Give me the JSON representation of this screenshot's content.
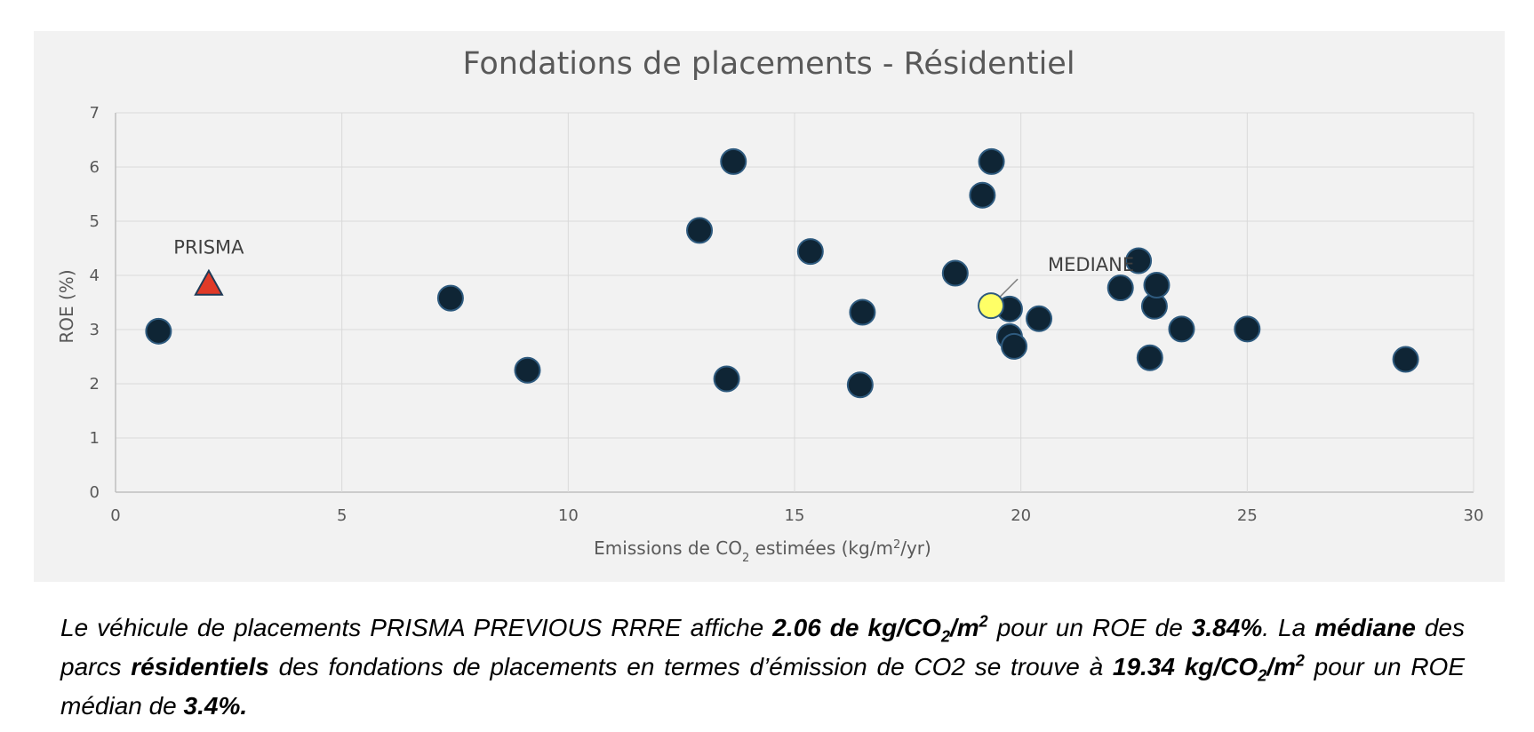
{
  "chart_data": {
    "type": "scatter",
    "title": "Fondations de placements - Résidentiel",
    "xlabel": {
      "main": "Emissions de CO",
      "sub": "2",
      "mid": " estimées (kg/m",
      "sup": "2",
      "end": "/yr)"
    },
    "ylabel": "ROE (%)",
    "xlim": [
      0,
      30
    ],
    "ylim": [
      0,
      7
    ],
    "xticks": [
      0,
      5,
      10,
      15,
      20,
      25,
      30
    ],
    "yticks": [
      0,
      1,
      2,
      3,
      4,
      5,
      6,
      7
    ],
    "grid": true,
    "series": [
      {
        "marker": "circle",
        "color": "#0f2535",
        "points": [
          {
            "x": 0.95,
            "y": 2.97
          },
          {
            "x": 7.4,
            "y": 3.58
          },
          {
            "x": 9.1,
            "y": 2.25
          },
          {
            "x": 12.9,
            "y": 4.83
          },
          {
            "x": 13.5,
            "y": 2.09
          },
          {
            "x": 13.65,
            "y": 6.1
          },
          {
            "x": 15.35,
            "y": 4.44
          },
          {
            "x": 16.45,
            "y": 1.98
          },
          {
            "x": 16.5,
            "y": 3.32
          },
          {
            "x": 18.55,
            "y": 4.04
          },
          {
            "x": 19.15,
            "y": 5.48
          },
          {
            "x": 19.35,
            "y": 6.1
          },
          {
            "x": 19.75,
            "y": 3.38
          },
          {
            "x": 19.75,
            "y": 2.87
          },
          {
            "x": 19.85,
            "y": 2.69
          },
          {
            "x": 20.4,
            "y": 3.2
          },
          {
            "x": 22.2,
            "y": 3.77
          },
          {
            "x": 22.6,
            "y": 4.27
          },
          {
            "x": 22.85,
            "y": 2.48
          },
          {
            "x": 22.95,
            "y": 3.43
          },
          {
            "x": 23.0,
            "y": 3.82
          },
          {
            "x": 23.55,
            "y": 3.01
          },
          {
            "x": 25.0,
            "y": 3.01
          },
          {
            "x": 28.5,
            "y": 2.45
          }
        ]
      },
      {
        "name": "PRISMA",
        "marker": "triangle",
        "color": "#e03a28",
        "points": [
          {
            "x": 2.06,
            "y": 3.84
          }
        ]
      },
      {
        "name": "MEDIANE",
        "marker": "circle",
        "color": "#ffff66",
        "points": [
          {
            "x": 19.34,
            "y": 3.44
          }
        ]
      }
    ],
    "annotations": [
      {
        "text": "PRISMA",
        "x": 2.06,
        "y": 4.4
      },
      {
        "text": "MEDIANE",
        "x": 21.55,
        "y": 4.08
      }
    ]
  },
  "caption": {
    "l1": "Le véhicule de placements PRISMA PREVIOUS RRRE affiche ",
    "b1": "2.06 de kg/CO",
    "b1sub": "2",
    "b1b": "/m",
    "b1sup": "2",
    "l2": " pour un ROE de ",
    "b2": "3.84%",
    "l3": ". La ",
    "b3": "médiane",
    "l4": " des parcs ",
    "b4": "résidentiels",
    "l5": " des fondations de placements en termes d’émission de CO2 se trouve à ",
    "b5": "19.34 kg/CO",
    "b5sub": "2",
    "b5b": "/m",
    "b5sup": "2",
    "l6": " pour un ROE médian de ",
    "b6": "3.4%."
  }
}
